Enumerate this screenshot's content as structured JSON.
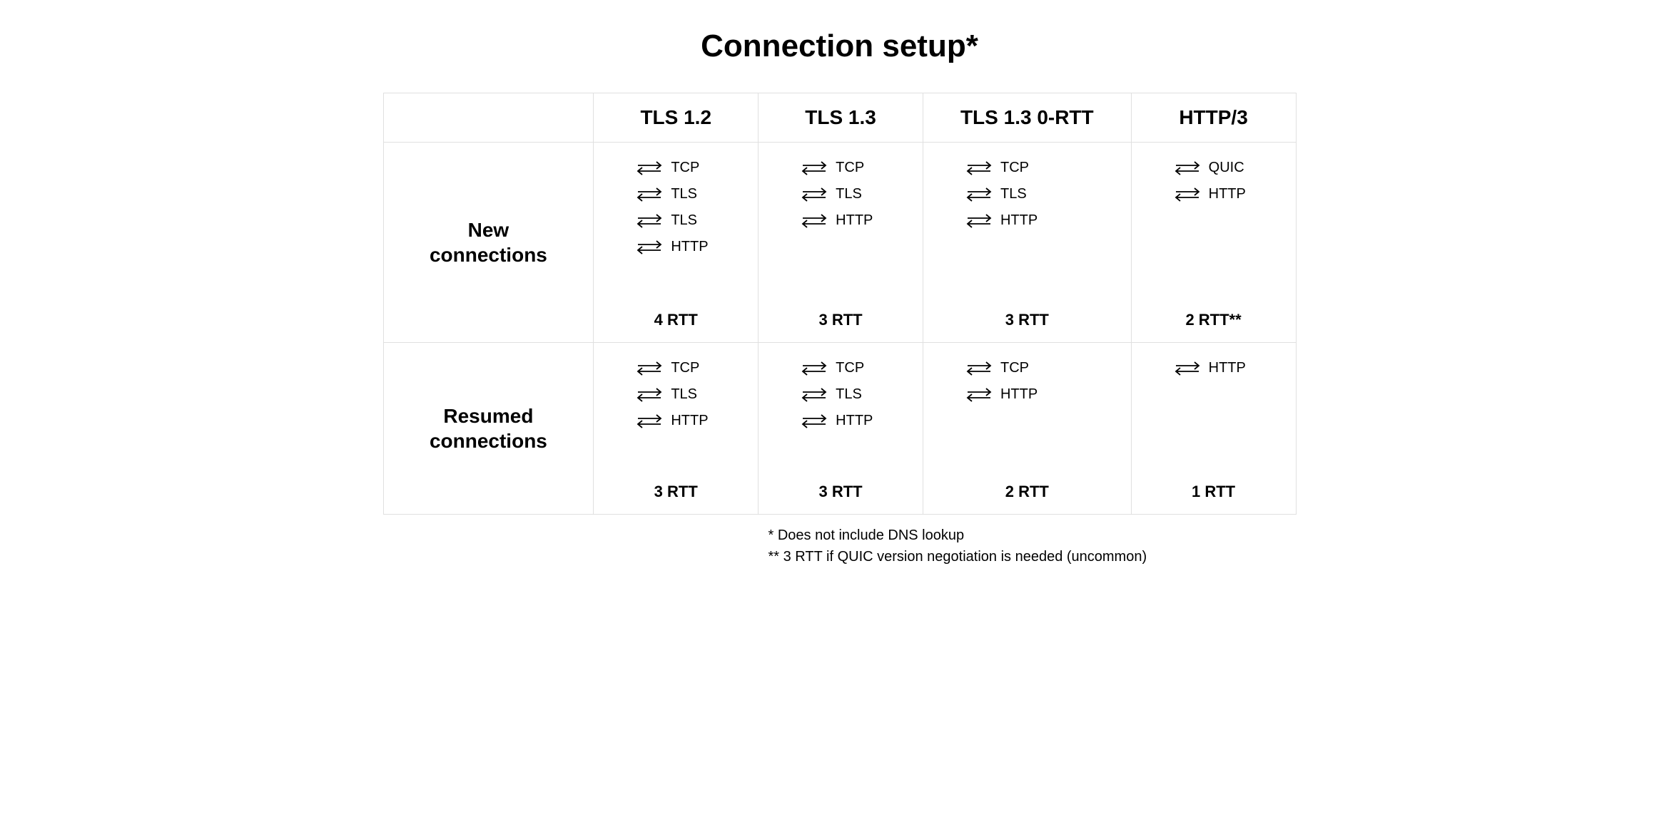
{
  "title": "Connection setup*",
  "columns": [
    "TLS 1.2",
    "TLS 1.3",
    "TLS 1.3 0-RTT",
    "HTTP/3"
  ],
  "rows": [
    {
      "header": "New\nconnections",
      "cells": [
        {
          "steps": [
            "TCP",
            "TLS",
            "TLS",
            "HTTP"
          ],
          "rtt": "4 RTT"
        },
        {
          "steps": [
            "TCP",
            "TLS",
            "HTTP"
          ],
          "rtt": "3 RTT"
        },
        {
          "steps": [
            "TCP",
            "TLS",
            "HTTP"
          ],
          "rtt": "3 RTT"
        },
        {
          "steps": [
            "QUIC",
            "HTTP"
          ],
          "rtt": "2 RTT**"
        }
      ]
    },
    {
      "header": "Resumed\nconnections",
      "cells": [
        {
          "steps": [
            "TCP",
            "TLS",
            "HTTP"
          ],
          "rtt": "3 RTT"
        },
        {
          "steps": [
            "TCP",
            "TLS",
            "HTTP"
          ],
          "rtt": "3 RTT"
        },
        {
          "steps": [
            "TCP",
            "HTTP"
          ],
          "rtt": "2 RTT"
        },
        {
          "steps": [
            "HTTP"
          ],
          "rtt": "1 RTT"
        }
      ]
    }
  ],
  "footnotes": [
    "* Does not include DNS lookup",
    "** 3 RTT if QUIC version negotiation is needed (uncommon)"
  ],
  "style": {
    "border_color": "#e0e0e0",
    "text_color": "#000000",
    "background_color": "#ffffff",
    "title_fontsize": 44,
    "header_fontsize": 28,
    "step_fontsize": 20,
    "rtt_fontsize": 22,
    "footnote_fontsize": 20,
    "arrow_color": "#000000",
    "arrow_width": 40,
    "arrow_height": 22
  }
}
